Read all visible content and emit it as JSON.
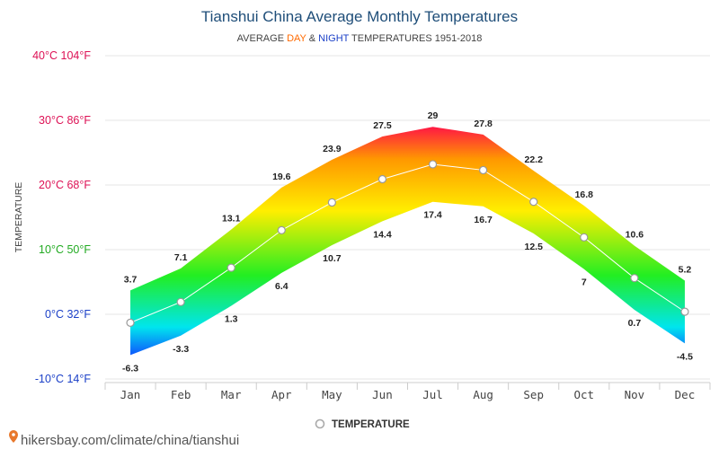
{
  "chart_data": {
    "type": "area",
    "title": "Tianshui China Average Monthly Temperatures",
    "subtitle": {
      "prefix": "AVERAGE ",
      "day": "DAY",
      "amp": " & ",
      "night": "NIGHT",
      "suffix": " TEMPERATURES 1951-2018"
    },
    "ylabel": "TEMPERATURE",
    "categories": [
      "Jan",
      "Feb",
      "Mar",
      "Apr",
      "May",
      "Jun",
      "Jul",
      "Aug",
      "Sep",
      "Oct",
      "Nov",
      "Dec"
    ],
    "day": [
      3.7,
      7.1,
      13.1,
      19.6,
      23.9,
      27.5,
      29,
      27.8,
      22.2,
      16.8,
      10.6,
      5.2
    ],
    "night": [
      -6.3,
      -3.3,
      1.3,
      6.4,
      10.7,
      14.4,
      17.4,
      16.7,
      12.5,
      7,
      0.7,
      -4.5
    ],
    "average": [
      -1.3,
      1.9,
      7.2,
      13.0,
      17.3,
      20.9,
      23.2,
      22.3,
      17.4,
      11.9,
      5.6,
      0.4
    ],
    "ylim": [
      -10,
      40
    ],
    "yticks": [
      {
        "value": -10,
        "label": "-10°C 14°F",
        "color": "#1a3fc7"
      },
      {
        "value": 0,
        "label": "0°C 32°F",
        "color": "#1a3fc7"
      },
      {
        "value": 10,
        "label": "10°C 50°F",
        "color": "#22aa22"
      },
      {
        "value": 20,
        "label": "20°C 68°F",
        "color": "#dd1155"
      },
      {
        "value": 30,
        "label": "30°C 86°F",
        "color": "#dd1155"
      },
      {
        "value": 40,
        "label": "40°C 104°F",
        "color": "#dd1155"
      }
    ],
    "legend": {
      "label": "TEMPERATURE",
      "position": "bottom-center"
    },
    "grid": true,
    "colors": {
      "day_word": "#ff6a00",
      "night_word": "#1a3fc7",
      "hot": "#ff1744",
      "warm": "#ff9800",
      "mild": "#ffee00",
      "cool": "#22ee22",
      "cold": "#00e5ee",
      "freezing": "#1040ff",
      "average_line": "#ffffff"
    }
  },
  "footer": {
    "source": "hikersbay.com/climate/china/tianshui"
  }
}
